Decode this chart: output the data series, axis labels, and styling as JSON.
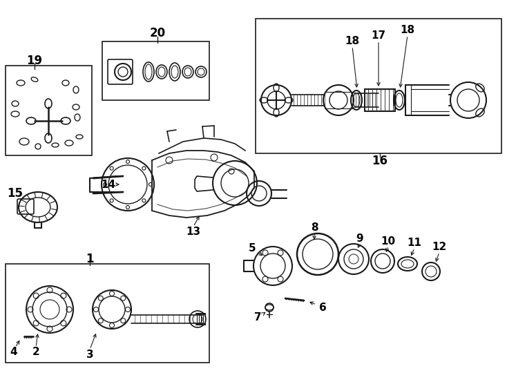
{
  "bg_color": "#ffffff",
  "line_color": "#1a1a1a",
  "fig_width": 7.34,
  "fig_height": 5.4,
  "dpi": 100
}
